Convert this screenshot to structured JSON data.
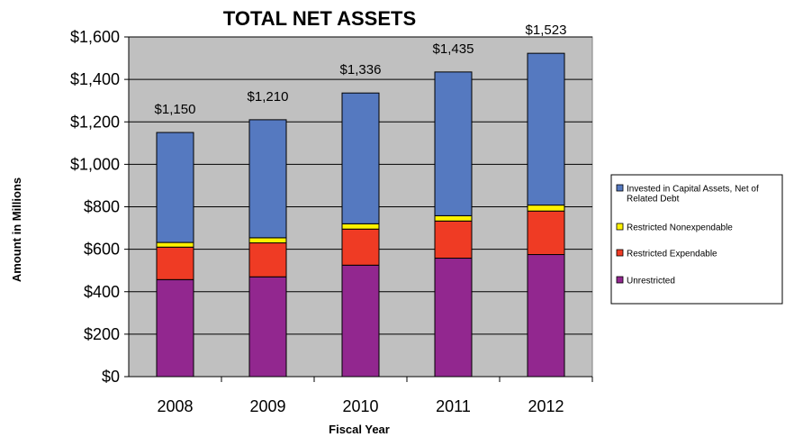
{
  "chart_data": {
    "type": "bar",
    "stacked": true,
    "title": "TOTAL NET ASSETS",
    "xlabel": "Fiscal Year",
    "ylabel": "Amount in Millions",
    "ylim": [
      0,
      1600
    ],
    "y_ticks": [
      "$0",
      "$200",
      "$400",
      "$600",
      "$800",
      "$1,000",
      "$1,200",
      "$1,400",
      "$1,600"
    ],
    "categories": [
      "2008",
      "2009",
      "2010",
      "2011",
      "2012"
    ],
    "totals": [
      "$1,150",
      "$1,210",
      "$1,336",
      "$1,435",
      "$1,523"
    ],
    "grid": true,
    "legend_position": "right",
    "series": [
      {
        "name": "Unrestricted",
        "color": "#92278f",
        "values": [
          457,
          470,
          525,
          558,
          575
        ]
      },
      {
        "name": "Restricted Expendable",
        "color": "#ef3b24",
        "values": [
          153,
          160,
          170,
          175,
          205
        ]
      },
      {
        "name": "Restricted Nonexpendable",
        "color": "#fff200",
        "values": [
          22,
          24,
          25,
          25,
          28
        ]
      },
      {
        "name": "Invested in Capital Assets, Net of Related Debt",
        "legend_lines": [
          "Invested in Capital Assets, Net of",
          "Related Debt"
        ],
        "color": "#5579c0",
        "values": [
          518,
          556,
          616,
          677,
          715
        ]
      }
    ]
  }
}
